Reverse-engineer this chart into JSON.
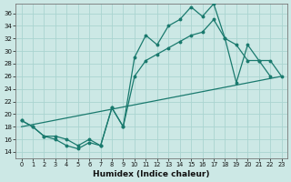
{
  "xlabel": "Humidex (Indice chaleur)",
  "bg_color": "#cce8e5",
  "grid_color": "#aad4d0",
  "line_color": "#1a7a6e",
  "xlim": [
    -0.5,
    23.5
  ],
  "ylim": [
    13.0,
    37.5
  ],
  "xticks": [
    0,
    1,
    2,
    3,
    4,
    5,
    6,
    7,
    8,
    9,
    10,
    11,
    12,
    13,
    14,
    15,
    16,
    17,
    18,
    19,
    20,
    21,
    22,
    23
  ],
  "yticks": [
    14,
    16,
    18,
    20,
    22,
    24,
    26,
    28,
    30,
    32,
    34,
    36
  ],
  "line1_x": [
    0,
    1,
    2,
    3,
    4,
    5,
    6,
    7,
    8,
    9,
    10,
    11,
    12,
    13,
    14,
    15,
    16,
    17,
    18,
    19,
    20,
    21,
    22
  ],
  "line1_y": [
    19,
    18,
    16.5,
    16,
    15,
    14.5,
    15.5,
    15,
    21,
    18,
    29,
    32.5,
    31,
    34,
    35,
    37,
    35.5,
    37.5,
    32,
    31,
    28.5,
    28.5,
    26
  ],
  "line2_x": [
    0,
    1,
    2,
    3,
    4,
    5,
    6,
    7,
    8,
    9,
    10,
    11,
    12,
    13,
    14,
    15,
    16,
    17,
    18,
    19,
    20,
    21,
    22,
    23
  ],
  "line2_y": [
    19,
    18,
    16.5,
    16.5,
    16,
    15,
    16,
    15,
    21,
    18,
    26,
    28.5,
    29.5,
    30.5,
    31.5,
    32.5,
    33,
    35,
    32,
    25,
    31,
    28.5,
    28.5,
    26
  ],
  "line3_x": [
    0,
    23
  ],
  "line3_y": [
    18,
    26
  ]
}
